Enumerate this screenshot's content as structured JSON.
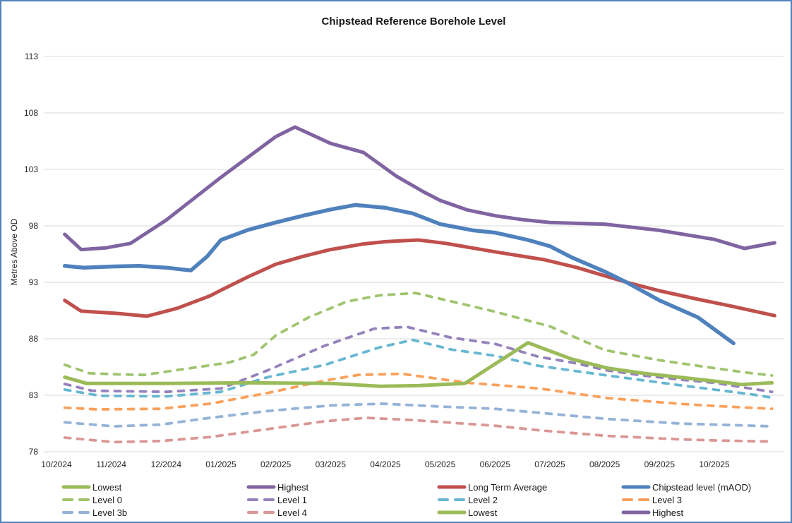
{
  "title": "Chipstead Reference Borehole Level",
  "y_axis": {
    "label": "Metres Above OD",
    "ticks": [
      113,
      108,
      103,
      98,
      93,
      88,
      83,
      78
    ],
    "min": 78,
    "max": 113
  },
  "x_axis": {
    "ticks": [
      "10/2024",
      "11/2024",
      "12/2024",
      "01/2025",
      "02/2025",
      "03/2025",
      "04/2025",
      "05/2025",
      "06/2025",
      "07/2025",
      "08/2025",
      "09/2025",
      "10/2025"
    ]
  },
  "colors": {
    "chipstead_blue": "#4F81BD",
    "long_term_average_red": "#C0504D",
    "lowest_green": "#9BBB59",
    "highest_purple": "#8064A2",
    "level0_green": "#A0C46E",
    "level1_purple": "#9682BC",
    "level2_aqua": "#67B7D1",
    "level3_orange": "#F9A15C",
    "level3b_blue": "#95B3D7",
    "level4_rose": "#D99795",
    "gridline": "#D9D9D9",
    "frame_border": "#4F81BD"
  },
  "legend": {
    "position": "bottom",
    "items": [
      {
        "label": "Lowest",
        "color": "#9BBB59",
        "style": "solid"
      },
      {
        "label": "Highest",
        "color": "#8064A2",
        "style": "solid"
      },
      {
        "label": "Long Term Average",
        "color": "#C0504D",
        "style": "solid"
      },
      {
        "label": "Chipstead level (mAOD)",
        "color": "#4F81BD",
        "style": "solid"
      },
      {
        "label": "Level 0",
        "color": "#A0C46E",
        "style": "dashed"
      },
      {
        "label": "Level 1",
        "color": "#9682BC",
        "style": "dashed"
      },
      {
        "label": "Level 2",
        "color": "#67B7D1",
        "style": "dashed"
      },
      {
        "label": "Level 3",
        "color": "#F9A15C",
        "style": "dashed"
      },
      {
        "label": "Level 3b",
        "color": "#95B3D7",
        "style": "dashed"
      },
      {
        "label": "Level 4",
        "color": "#D99795",
        "style": "dashed"
      },
      {
        "label": "Lowest",
        "color": "#9BBB59",
        "style": "solid"
      },
      {
        "label": "Highest",
        "color": "#8064A2",
        "style": "solid"
      }
    ]
  },
  "chart_data": {
    "type": "line",
    "title": "Chipstead Reference Borehole Level",
    "xlabel": "",
    "ylabel": "Metres Above OD",
    "ylim": [
      78,
      113
    ],
    "grid": true,
    "legend_position": "bottom",
    "x_categories": [
      "10/2024",
      "11/2024",
      "12/2024",
      "01/2025",
      "02/2025",
      "03/2025",
      "04/2025",
      "05/2025",
      "06/2025",
      "07/2025",
      "08/2025",
      "09/2025",
      "10/2025"
    ],
    "x_unit": "months after 10/2024 tick (fractional values = part-way through month)",
    "y_unit": "metres above Ordnance Datum",
    "series": [
      {
        "name": "Level 0",
        "color": "#A0C46E",
        "style": "dashed",
        "width": 3.8,
        "points": [
          [
            0.15,
            85.7
          ],
          [
            0.6,
            84.95
          ],
          [
            1.1,
            84.85
          ],
          [
            1.6,
            84.8
          ],
          [
            2.3,
            85.3
          ],
          [
            3.15,
            85.9
          ],
          [
            3.6,
            86.6
          ],
          [
            4.0,
            88.3
          ],
          [
            4.6,
            89.9
          ],
          [
            5.3,
            91.3
          ],
          [
            5.9,
            91.85
          ],
          [
            6.55,
            92.05
          ],
          [
            7.3,
            91.2
          ],
          [
            8.0,
            90.4
          ],
          [
            9.0,
            89.1
          ],
          [
            10.0,
            87.0
          ],
          [
            11.0,
            86.1
          ],
          [
            12.0,
            85.4
          ],
          [
            12.6,
            85.0
          ],
          [
            13.05,
            84.75
          ]
        ]
      },
      {
        "name": "Level 1",
        "color": "#9682BC",
        "style": "dashed",
        "width": 3.8,
        "points": [
          [
            0.15,
            84.0
          ],
          [
            0.65,
            83.4
          ],
          [
            2.0,
            83.3
          ],
          [
            3.0,
            83.6
          ],
          [
            3.85,
            85.2
          ],
          [
            4.9,
            87.4
          ],
          [
            5.8,
            88.9
          ],
          [
            6.4,
            89.05
          ],
          [
            7.2,
            88.1
          ],
          [
            8.0,
            87.55
          ],
          [
            8.8,
            86.4
          ],
          [
            9.4,
            85.9
          ],
          [
            10.05,
            85.2
          ],
          [
            10.7,
            84.75
          ],
          [
            11.35,
            84.4
          ],
          [
            12.0,
            84.1
          ],
          [
            12.65,
            83.6
          ],
          [
            13.05,
            83.3
          ]
        ]
      },
      {
        "name": "Level 2",
        "color": "#67B7D1",
        "style": "dashed",
        "width": 3.8,
        "points": [
          [
            0.15,
            83.5
          ],
          [
            0.8,
            82.95
          ],
          [
            2.0,
            82.9
          ],
          [
            3.0,
            83.3
          ],
          [
            3.85,
            84.6
          ],
          [
            4.9,
            85.7
          ],
          [
            5.9,
            87.25
          ],
          [
            6.5,
            87.9
          ],
          [
            7.2,
            87.05
          ],
          [
            8.0,
            86.5
          ],
          [
            8.8,
            85.6
          ],
          [
            10.05,
            84.75
          ],
          [
            11.35,
            83.9
          ],
          [
            12.0,
            83.5
          ],
          [
            12.65,
            83.1
          ],
          [
            13.1,
            82.75
          ]
        ]
      },
      {
        "name": "Level 3",
        "color": "#F9A15C",
        "style": "dashed",
        "width": 3.8,
        "points": [
          [
            0.15,
            81.9
          ],
          [
            0.75,
            81.75
          ],
          [
            1.9,
            81.8
          ],
          [
            2.8,
            82.25
          ],
          [
            3.85,
            83.2
          ],
          [
            4.9,
            84.3
          ],
          [
            5.5,
            84.8
          ],
          [
            6.3,
            84.9
          ],
          [
            7.5,
            84.1
          ],
          [
            8.3,
            83.8
          ],
          [
            8.8,
            83.6
          ],
          [
            10.05,
            82.75
          ],
          [
            11.35,
            82.25
          ],
          [
            12.0,
            82.05
          ],
          [
            13.05,
            81.8
          ]
        ]
      },
      {
        "name": "Level 3b",
        "color": "#95B3D7",
        "style": "dashed",
        "width": 3.8,
        "points": [
          [
            0.15,
            80.6
          ],
          [
            1.05,
            80.25
          ],
          [
            1.9,
            80.4
          ],
          [
            2.8,
            81.0
          ],
          [
            3.85,
            81.6
          ],
          [
            5.0,
            82.1
          ],
          [
            5.95,
            82.25
          ],
          [
            7.0,
            82.0
          ],
          [
            8.0,
            81.8
          ],
          [
            8.8,
            81.45
          ],
          [
            10.05,
            80.9
          ],
          [
            11.35,
            80.5
          ],
          [
            12.0,
            80.4
          ],
          [
            13.05,
            80.25
          ]
        ]
      },
      {
        "name": "Level 4",
        "color": "#D99795",
        "style": "dashed",
        "width": 3.8,
        "points": [
          [
            0.15,
            79.25
          ],
          [
            1.05,
            78.85
          ],
          [
            1.9,
            78.95
          ],
          [
            2.8,
            79.3
          ],
          [
            3.85,
            80.0
          ],
          [
            4.9,
            80.7
          ],
          [
            5.65,
            81.0
          ],
          [
            6.5,
            80.8
          ],
          [
            8.0,
            80.3
          ],
          [
            8.8,
            79.9
          ],
          [
            10.05,
            79.4
          ],
          [
            11.35,
            79.1
          ],
          [
            12.0,
            79.0
          ],
          [
            13.05,
            78.9
          ]
        ]
      },
      {
        "name": "Lowest",
        "color": "#9BBB59",
        "style": "solid",
        "width": 5,
        "points": [
          [
            0.15,
            84.6
          ],
          [
            0.55,
            84.05
          ],
          [
            2.0,
            84.05
          ],
          [
            3.5,
            84.1
          ],
          [
            5.0,
            84.05
          ],
          [
            5.9,
            83.8
          ],
          [
            6.6,
            83.85
          ],
          [
            7.45,
            84.05
          ],
          [
            8.6,
            87.65
          ],
          [
            9.4,
            86.2
          ],
          [
            10.05,
            85.4
          ],
          [
            10.7,
            84.95
          ],
          [
            11.35,
            84.6
          ],
          [
            12.0,
            84.25
          ],
          [
            12.5,
            83.95
          ],
          [
            13.05,
            84.1
          ]
        ]
      },
      {
        "name": "Highest",
        "color": "#8064A2",
        "style": "solid",
        "width": 5,
        "points": [
          [
            0.15,
            97.25
          ],
          [
            0.45,
            95.9
          ],
          [
            0.9,
            96.05
          ],
          [
            1.35,
            96.45
          ],
          [
            2.0,
            98.5
          ],
          [
            3.0,
            102.3
          ],
          [
            4.0,
            105.9
          ],
          [
            4.35,
            106.75
          ],
          [
            5.0,
            105.3
          ],
          [
            5.6,
            104.5
          ],
          [
            6.2,
            102.4
          ],
          [
            6.7,
            101.0
          ],
          [
            7.0,
            100.25
          ],
          [
            7.5,
            99.4
          ],
          [
            8.0,
            98.9
          ],
          [
            8.5,
            98.55
          ],
          [
            9.0,
            98.3
          ],
          [
            10.0,
            98.15
          ],
          [
            11.0,
            97.6
          ],
          [
            12.0,
            96.8
          ],
          [
            12.55,
            96.0
          ],
          [
            13.1,
            96.5
          ]
        ]
      },
      {
        "name": "Long Term Average",
        "color": "#C0504D",
        "style": "solid",
        "width": 5,
        "points": [
          [
            0.15,
            91.4
          ],
          [
            0.45,
            90.45
          ],
          [
            1.1,
            90.25
          ],
          [
            1.65,
            90.0
          ],
          [
            2.2,
            90.7
          ],
          [
            2.8,
            91.8
          ],
          [
            3.0,
            92.3
          ],
          [
            3.5,
            93.5
          ],
          [
            4.0,
            94.6
          ],
          [
            4.5,
            95.3
          ],
          [
            5.0,
            95.9
          ],
          [
            5.6,
            96.4
          ],
          [
            6.0,
            96.6
          ],
          [
            6.6,
            96.75
          ],
          [
            7.1,
            96.45
          ],
          [
            8.0,
            95.7
          ],
          [
            8.9,
            95.0
          ],
          [
            9.5,
            94.3
          ],
          [
            10.4,
            93.0
          ],
          [
            11.0,
            92.25
          ],
          [
            11.7,
            91.5
          ],
          [
            12.3,
            90.9
          ],
          [
            13.1,
            90.05
          ]
        ]
      },
      {
        "name": "Chipstead level (mAOD)",
        "color": "#4F81BD",
        "style": "solid",
        "width": 5.5,
        "points": [
          [
            0.15,
            94.45
          ],
          [
            0.5,
            94.3
          ],
          [
            1.0,
            94.4
          ],
          [
            1.5,
            94.45
          ],
          [
            2.0,
            94.3
          ],
          [
            2.45,
            94.05
          ],
          [
            2.75,
            95.3
          ],
          [
            3.0,
            96.75
          ],
          [
            3.5,
            97.65
          ],
          [
            4.0,
            98.3
          ],
          [
            4.5,
            98.9
          ],
          [
            5.0,
            99.45
          ],
          [
            5.45,
            99.85
          ],
          [
            6.0,
            99.6
          ],
          [
            6.5,
            99.1
          ],
          [
            7.0,
            98.15
          ],
          [
            7.6,
            97.6
          ],
          [
            8.0,
            97.4
          ],
          [
            8.6,
            96.75
          ],
          [
            9.0,
            96.2
          ],
          [
            9.4,
            95.2
          ],
          [
            10.0,
            93.95
          ],
          [
            10.4,
            93.0
          ],
          [
            11.0,
            91.4
          ],
          [
            11.7,
            89.9
          ],
          [
            12.35,
            87.6
          ]
        ]
      }
    ]
  }
}
